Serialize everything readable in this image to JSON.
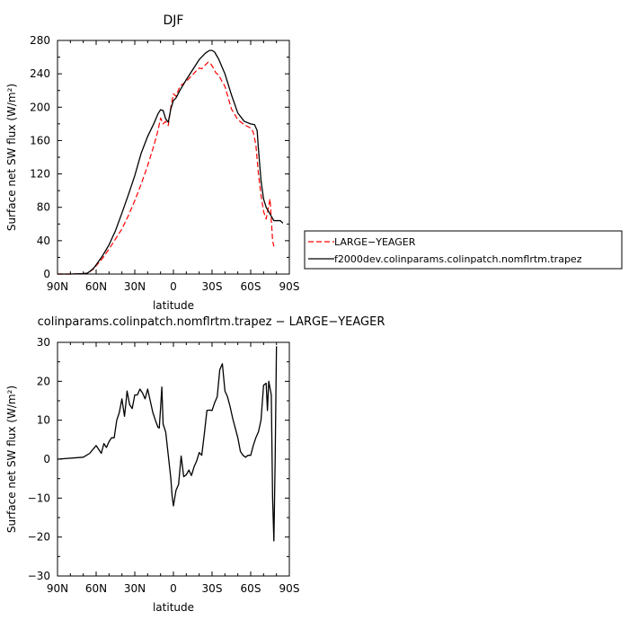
{
  "chart_data": [
    {
      "type": "line",
      "title": "DJF",
      "xlabel": "latitude",
      "ylabel": "Surface net SW flux (W/m²)",
      "xlim": [
        90,
        -90
      ],
      "ylim": [
        0,
        280
      ],
      "xticks": [
        90,
        60,
        30,
        0,
        -30,
        -60,
        -90
      ],
      "xtick_labels": [
        "90N",
        "60N",
        "30N",
        "0",
        "30S",
        "60S",
        "90S"
      ],
      "yticks": [
        0,
        40,
        80,
        120,
        160,
        200,
        240,
        280
      ],
      "ytick_labels": [
        "0",
        "40",
        "80",
        "120",
        "160",
        "200",
        "240",
        "280"
      ],
      "legend_position": "right",
      "series": [
        {
          "name": "LARGE−YEAGER",
          "color": "#ff0000",
          "style": "dashed",
          "x": [
            90,
            80,
            70,
            67,
            65,
            62,
            60,
            55,
            50,
            45,
            40,
            35,
            30,
            25,
            20,
            15,
            12,
            10,
            8,
            6,
            4,
            2,
            0,
            -2,
            -5,
            -10,
            -15,
            -18,
            -20,
            -22,
            -25,
            -27,
            -29,
            -31,
            -33,
            -35,
            -38,
            -40,
            -45,
            -50,
            -55,
            -60,
            -62,
            -64,
            -66,
            -68,
            -70,
            -72,
            -74,
            -75,
            -76,
            -77,
            -78
          ],
          "y": [
            0,
            0,
            0.5,
            1,
            3,
            6,
            10,
            19,
            30,
            42,
            54,
            70,
            88,
            108,
            130,
            155,
            172,
            187,
            180,
            183,
            178,
            200,
            216,
            213,
            225,
            231,
            239,
            244,
            247,
            246,
            251,
            254,
            252,
            247,
            241,
            239,
            230,
            225,
            198,
            185,
            179,
            175,
            170,
            155,
            120,
            95,
            75,
            66,
            82,
            90,
            65,
            40,
            33
          ]
        },
        {
          "name": "f2000dev.colinparams.colinpatch.nomflrtm.trapez",
          "color": "#000000",
          "style": "solid",
          "x": [
            90,
            80,
            70,
            67,
            65,
            62,
            60,
            55,
            50,
            45,
            40,
            35,
            30,
            25,
            20,
            15,
            12,
            10,
            8,
            6,
            4,
            2,
            0,
            -2,
            -5,
            -10,
            -15,
            -20,
            -25,
            -28,
            -30,
            -32,
            -35,
            -40,
            -45,
            -50,
            -55,
            -60,
            -63,
            -65,
            -66,
            -68,
            -70,
            -72,
            -75,
            -78,
            -80,
            -83,
            -85
          ],
          "y": [
            0,
            0,
            0.5,
            1,
            3,
            7,
            11,
            22,
            35,
            52,
            73,
            95,
            118,
            145,
            165,
            181,
            192,
            197,
            196,
            186,
            182,
            198,
            208,
            211,
            220,
            233,
            245,
            257,
            265,
            268,
            268,
            266,
            258,
            240,
            215,
            193,
            183,
            180,
            179,
            172,
            150,
            112,
            90,
            80,
            72,
            64,
            64,
            64,
            61
          ]
        }
      ]
    },
    {
      "type": "line",
      "title": "colinparams.colinpatch.nomflrtm.trapez − LARGE−YEAGER",
      "xlabel": "latitude",
      "ylabel": "Surface net SW flux (W/m²)",
      "xlim": [
        90,
        -90
      ],
      "ylim": [
        -30,
        30
      ],
      "xticks": [
        90,
        60,
        30,
        0,
        -30,
        -60,
        -90
      ],
      "xtick_labels": [
        "90N",
        "60N",
        "30N",
        "0",
        "30S",
        "60S",
        "90S"
      ],
      "yticks": [
        -30,
        -20,
        -10,
        0,
        10,
        20,
        30
      ],
      "ytick_labels": [
        "−30",
        "−20",
        "−10",
        "0",
        "10",
        "20",
        "30"
      ],
      "series": [
        {
          "name": "",
          "color": "#000000",
          "style": "solid",
          "x": [
            90,
            70,
            65,
            60,
            58,
            56,
            54,
            52,
            50,
            48,
            46,
            44,
            42,
            40,
            38,
            37,
            36,
            34,
            32,
            30,
            28,
            26,
            24,
            22,
            20,
            18,
            16,
            14,
            12,
            11,
            10,
            9,
            8,
            6,
            4,
            2,
            1,
            0,
            -1,
            -2,
            -4,
            -6,
            -8,
            -10,
            -12,
            -14,
            -16,
            -18,
            -20,
            -22,
            -24,
            -26,
            -28,
            -30,
            -32,
            -34,
            -36,
            -38,
            -40,
            -42,
            -44,
            -46,
            -48,
            -50,
            -52,
            -54,
            -56,
            -58,
            -60,
            -62,
            -64,
            -66,
            -68,
            -70,
            -72,
            -73,
            -74,
            -76,
            -77,
            -78,
            -79,
            -80
          ],
          "y": [
            0,
            0.5,
            1.5,
            3.5,
            2.5,
            1.5,
            4,
            3,
            4.5,
            5.5,
            5.5,
            10,
            12,
            15.5,
            11,
            14,
            17.5,
            14,
            13,
            16.5,
            16.5,
            18,
            17,
            15.5,
            18,
            15,
            12,
            10,
            8.2,
            8,
            13,
            18.5,
            9,
            7,
            1,
            -5,
            -9.5,
            -12,
            -10,
            -8,
            -6.5,
            0.8,
            -4.5,
            -4,
            -2.8,
            -4.2,
            -2,
            -0.5,
            1.7,
            1,
            6.5,
            12.5,
            12.6,
            12.5,
            14.5,
            16,
            23,
            24.5,
            17.5,
            16,
            13.5,
            10.5,
            8,
            5.5,
            2,
            1,
            0.5,
            1,
            1,
            3.5,
            5.5,
            7,
            10,
            19,
            19.5,
            12.5,
            20,
            16.5,
            -10,
            -21,
            0,
            29
          ]
        }
      ]
    }
  ]
}
